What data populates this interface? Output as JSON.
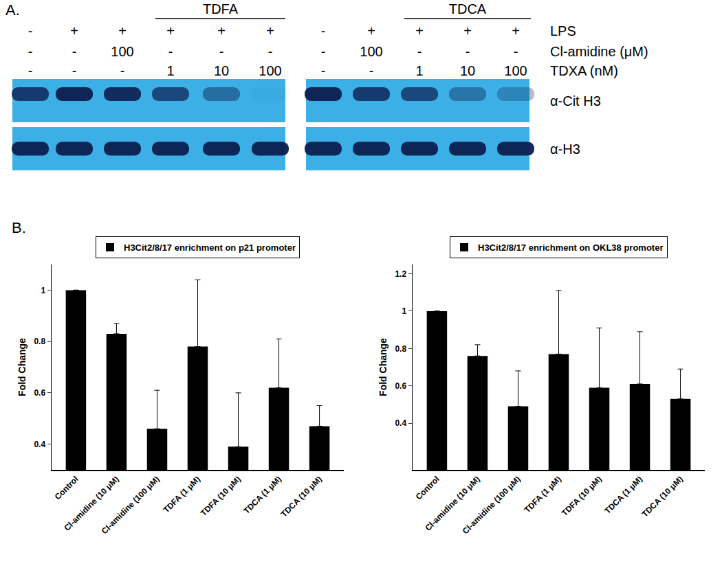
{
  "panel_labels": [
    "A.",
    "B."
  ],
  "blot": {
    "row_labels": [
      "LPS",
      "Cl-amidine (μM)",
      "TDXA (nM)"
    ],
    "blot_labels": [
      "α-Cit H3",
      "α-H3"
    ],
    "gels": [
      {
        "header": "TDFA",
        "header_lanes": [
          3,
          5
        ],
        "conditions": [
          [
            "-",
            "+",
            "+",
            "+",
            "+",
            "+"
          ],
          [
            "-",
            "-",
            "100",
            "-",
            "-",
            "-"
          ],
          [
            "-",
            "-",
            "-",
            "1",
            "10",
            "100"
          ]
        ],
        "band_intensity": [
          [
            0.8,
            0.95,
            0.9,
            0.7,
            0.45,
            0.03
          ],
          [
            0.95,
            0.95,
            0.95,
            0.95,
            0.95,
            0.95
          ]
        ]
      },
      {
        "header": "TDCA",
        "header_lanes": [
          2,
          4
        ],
        "conditions": [
          [
            "-",
            "+",
            "+",
            "+",
            "+"
          ],
          [
            "-",
            "100",
            "-",
            "-",
            "-"
          ],
          [
            "-",
            "-",
            "1",
            "10",
            "100"
          ]
        ],
        "band_intensity": [
          [
            0.95,
            0.8,
            0.7,
            0.4,
            0.3
          ],
          [
            0.95,
            0.95,
            0.95,
            0.95,
            0.95
          ]
        ]
      }
    ]
  },
  "chart_data": [
    {
      "type": "bar",
      "categories": [
        "Control",
        "Cl-amidine (10 μM)",
        "Cl-amidine (100 μM)",
        "TDFA (1 μM)",
        "TDFA (10 μM)",
        "TDCA (1 μM)",
        "TDCA (10 μM)"
      ],
      "series": [
        {
          "name": "H3Cit2/8/17 enrichment on p21 promoter",
          "color": "#000000",
          "values": [
            1.0,
            0.83,
            0.46,
            0.78,
            0.39,
            0.62,
            0.47
          ],
          "error": [
            0,
            0.04,
            0.15,
            0.26,
            0.21,
            0.19,
            0.08
          ]
        }
      ],
      "y_label": "Fold Change",
      "ylim": [
        0.3,
        1.1
      ],
      "yticks": [
        0.4,
        0.6,
        0.8,
        1
      ],
      "legend": "top"
    },
    {
      "type": "bar",
      "categories": [
        "Control",
        "Cl-amidine (10 μM)",
        "Cl-amidine (100 μM)",
        "TDFA (1 μM)",
        "TDFA (10 μM)",
        "TDCA (1 μM)",
        "TDCA (10 μM)"
      ],
      "series": [
        {
          "name": "H3Cit2/8/17 enrichment on OKL38 promoter",
          "color": "#000000",
          "values": [
            1.0,
            0.76,
            0.49,
            0.77,
            0.59,
            0.61,
            0.53
          ],
          "error": [
            0,
            0.06,
            0.19,
            0.34,
            0.32,
            0.28,
            0.16
          ]
        }
      ],
      "y_label": "Fold Change",
      "ylim": [
        0.15,
        1.25
      ],
      "yticks": [
        0.4,
        0.6,
        0.8,
        1,
        1.2
      ],
      "legend": "top"
    }
  ]
}
